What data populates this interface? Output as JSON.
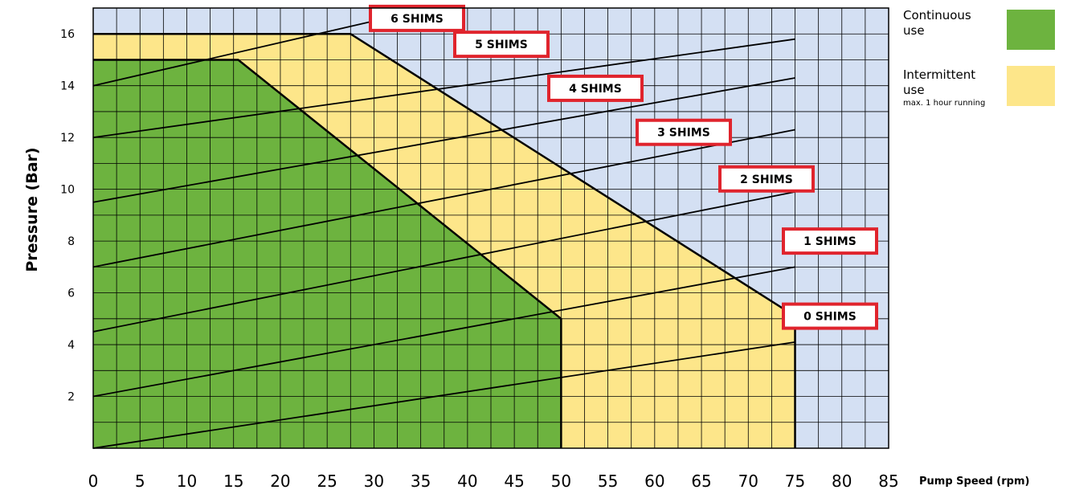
{
  "chart_data": {
    "type": "area",
    "xlabel": "Pump Speed (rpm)",
    "ylabel": "Pressure (Bar)",
    "xlim": [
      0,
      85
    ],
    "ylim": [
      0,
      17
    ],
    "x_ticks": [
      0,
      5,
      10,
      15,
      20,
      25,
      30,
      35,
      40,
      45,
      50,
      55,
      60,
      65,
      70,
      75,
      80,
      85
    ],
    "y_ticks": [
      2,
      4,
      6,
      8,
      10,
      12,
      14,
      16
    ],
    "grid": true,
    "legend_position": "right",
    "regions": [
      {
        "name": "Intermittent use",
        "note": "max. 1 hour running",
        "color": "#fde68a",
        "boundary": [
          [
            0,
            0
          ],
          [
            0,
            16
          ],
          [
            27.5,
            16
          ],
          [
            75,
            5.1
          ],
          [
            75,
            0
          ]
        ]
      },
      {
        "name": "Continuous use",
        "color": "#6db33f",
        "boundary": [
          [
            0,
            0
          ],
          [
            0,
            15
          ],
          [
            15.5,
            15
          ],
          [
            50,
            5
          ],
          [
            50,
            0
          ]
        ]
      }
    ],
    "series": [
      {
        "name": "0 SHIMS",
        "x": [
          0,
          75
        ],
        "y": [
          0,
          4.1
        ]
      },
      {
        "name": "1 SHIMS",
        "x": [
          0,
          75
        ],
        "y": [
          2,
          7
        ]
      },
      {
        "name": "2 SHIMS",
        "x": [
          0,
          75
        ],
        "y": [
          4.5,
          9.9
        ]
      },
      {
        "name": "3 SHIMS",
        "x": [
          0,
          75
        ],
        "y": [
          7,
          12.3
        ]
      },
      {
        "name": "4 SHIMS",
        "x": [
          0,
          75
        ],
        "y": [
          9.5,
          14.3
        ]
      },
      {
        "name": "5 SHIMS",
        "x": [
          0,
          75
        ],
        "y": [
          12,
          15.8
        ]
      },
      {
        "name": "6 SHIMS",
        "x": [
          0,
          30
        ],
        "y": [
          14,
          16.5
        ]
      }
    ],
    "line_labels": [
      {
        "series": "6 SHIMS",
        "x": 35,
        "y": 16.6
      },
      {
        "series": "5 SHIMS",
        "x": 51,
        "y": 15.6
      },
      {
        "series": "4 SHIMS",
        "x": 68,
        "y": 13.9
      },
      {
        "series": "3 SHIMS",
        "x": 85,
        "y": 12.2
      },
      {
        "series": "2 SHIMS",
        "x": 101,
        "y": 10.4
      },
      {
        "series": "1 SHIMS",
        "x": 118,
        "y": 8
      },
      {
        "series": "0 SHIMS",
        "x": 118,
        "y": 5.1
      }
    ],
    "colors": {
      "background": "#d4e0f3",
      "line": "#000000",
      "label_border": "#e0242d",
      "label_fill": "#ffffff"
    }
  },
  "legend": {
    "continuous": {
      "label": "Continuous use",
      "color": "#6db33f"
    },
    "intermittent": {
      "label": "Intermittent use",
      "note": "max. 1 hour running",
      "color": "#fde68a"
    }
  }
}
